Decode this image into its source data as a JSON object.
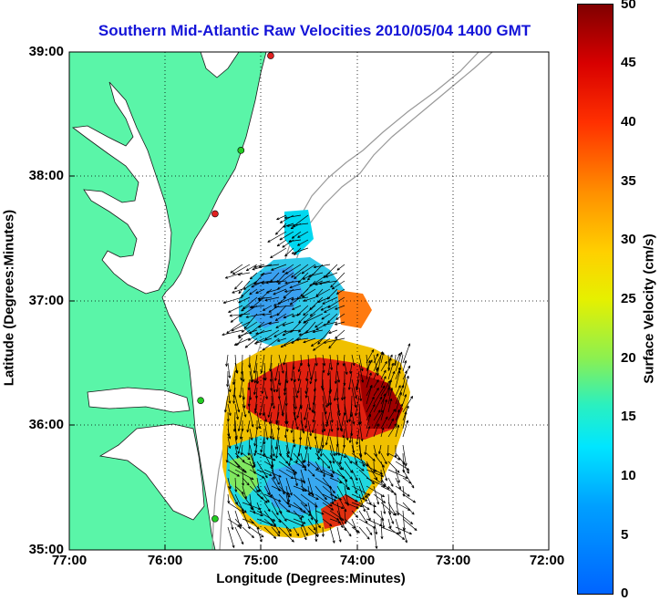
{
  "title": "Southern Mid-Atlantic Raw Velocities 2010/05/04 1400 GMT",
  "axes": {
    "xlabel": "Longitude (Degrees:Minutes)",
    "ylabel": "Latitude (Degrees:Minutes)",
    "x_ticks": [
      "77:00",
      "76:00",
      "75:00",
      "74:00",
      "73:00",
      "72:00"
    ],
    "y_ticks": [
      "39:00",
      "38:00",
      "37:00",
      "36:00",
      "35:00"
    ],
    "x_range_deg_west": [
      77,
      72
    ],
    "y_range_deg_north": [
      35,
      39
    ],
    "grid": "dotted"
  },
  "colorbar": {
    "label": "Surface Velocity (cm/s)",
    "ticks": [
      "50",
      "45",
      "40",
      "35",
      "30",
      "25",
      "20",
      "15",
      "10",
      "5",
      "0"
    ],
    "range": [
      0,
      50
    ],
    "palette": [
      "#0064ff",
      "#00e6ff",
      "#2af0c0",
      "#e6f000",
      "#ff9000",
      "#d80000",
      "#800000"
    ]
  },
  "colors": {
    "land": "#5af5a8",
    "ocean": "#ffffff",
    "bathymetry": "#999999",
    "station_active": "#22cc22",
    "station_inactive": "#e02020"
  },
  "stations": [
    {
      "lon": 74.9,
      "lat": 38.97,
      "status": "inactive"
    },
    {
      "lon": 75.21,
      "lat": 38.21,
      "status": "active"
    },
    {
      "lon": 75.48,
      "lat": 37.7,
      "status": "inactive"
    },
    {
      "lon": 75.63,
      "lat": 36.2,
      "status": "active"
    },
    {
      "lon": 75.48,
      "lat": 35.25,
      "status": "active"
    }
  ]
}
